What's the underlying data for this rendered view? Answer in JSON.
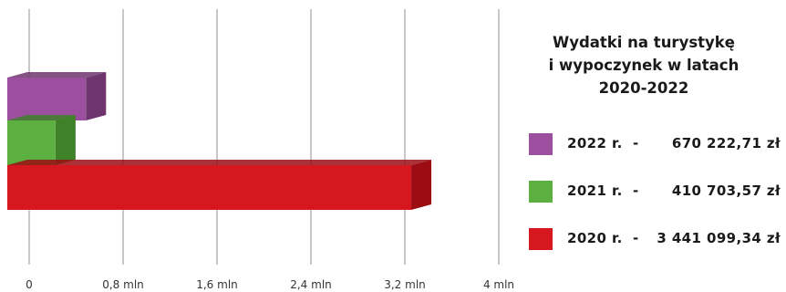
{
  "chart_data": {
    "type": "bar",
    "orientation": "horizontal",
    "title": "Wydatki na turystykę i wypoczynek w latach 2020-2022",
    "title_lines": [
      "Wydatki na turystykę",
      "i wypoczynek w latach",
      "2020-2022"
    ],
    "xlim": [
      0,
      4000000
    ],
    "x_ticks": [
      {
        "value": 0,
        "label": "0"
      },
      {
        "value": 800000,
        "label": "0,8 mln"
      },
      {
        "value": 1600000,
        "label": "1,6 mln"
      },
      {
        "value": 2400000,
        "label": "2,4 mln"
      },
      {
        "value": 3200000,
        "label": "3,2 mln"
      },
      {
        "value": 4000000,
        "label": "4 mln"
      }
    ],
    "grid": true,
    "legend_position": "right",
    "series": [
      {
        "name": "2022 r.",
        "value": 670222.71,
        "label": "670 222,71 zł",
        "color": "#9b4f9e",
        "side_color": "#6e356f"
      },
      {
        "name": "2021 r.",
        "value": 410703.57,
        "label": "410 703,57 zł",
        "color": "#5cb040",
        "side_color": "#3f8128"
      },
      {
        "name": "2020 r.",
        "value": 3441099.34,
        "label": "3 441 099,34 zł",
        "color": "#d7171f",
        "side_color": "#9b0d13"
      }
    ]
  },
  "legend": {
    "dash": "-"
  }
}
